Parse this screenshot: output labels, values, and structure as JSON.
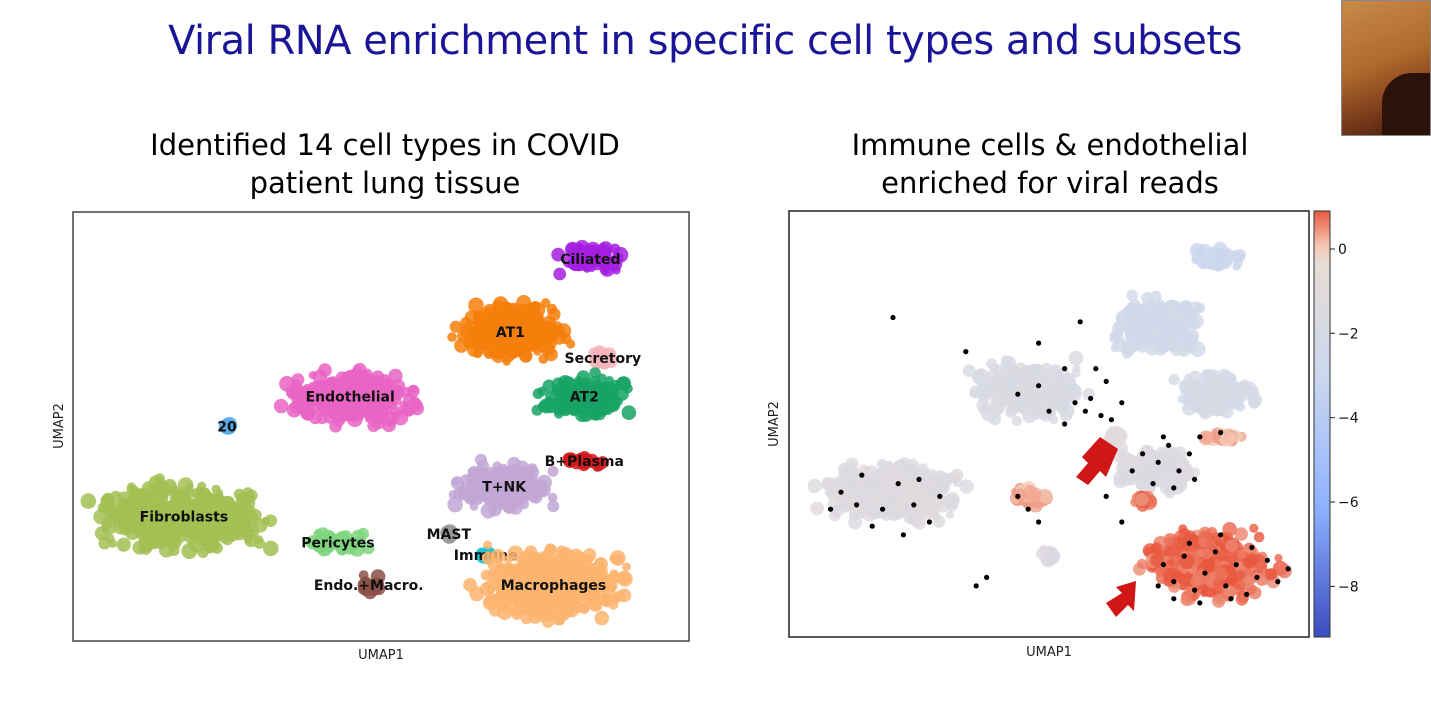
{
  "slide": {
    "title": "Viral RNA enrichment in specific cell types and subsets"
  },
  "chart_data": [
    {
      "type": "scatter",
      "title": "Identified 14 cell types in COVID patient lung tissue",
      "title_lines": [
        "Identified 14 cell types in COVID",
        "patient lung tissue"
      ],
      "xlabel": "UMAP1",
      "ylabel": "UMAP2",
      "xlim": [
        0,
        100
      ],
      "ylim": [
        0,
        100
      ],
      "grid": false,
      "clusters": [
        {
          "name": "Ciliated",
          "color": "#a51ee0",
          "x": 84,
          "y": 89
        },
        {
          "name": "AT1",
          "color": "#f47f0b",
          "x": 71,
          "y": 72
        },
        {
          "name": "Secretory",
          "color": "#f3b4b9",
          "x": 86,
          "y": 66
        },
        {
          "name": "AT2",
          "color": "#17a365",
          "x": 83,
          "y": 57
        },
        {
          "name": "Endothelial",
          "color": "#e964c4",
          "x": 45,
          "y": 57
        },
        {
          "name": "20",
          "color": "#5aa9e6",
          "x": 25,
          "y": 50
        },
        {
          "name": "B+Plasma",
          "color": "#d7191c",
          "x": 83,
          "y": 42
        },
        {
          "name": "T+NK",
          "color": "#c2a7d6",
          "x": 70,
          "y": 36
        },
        {
          "name": "Fibroblasts",
          "color": "#a3bf53",
          "x": 18,
          "y": 29
        },
        {
          "name": "Pericytes",
          "color": "#7fd67f",
          "x": 43,
          "y": 23
        },
        {
          "name": "MAST",
          "color": "#9a9a9a",
          "x": 61,
          "y": 25
        },
        {
          "name": "Immune",
          "color": "#1cc4d6",
          "x": 67,
          "y": 20
        },
        {
          "name": "Endo.+Macro.",
          "color": "#8b5147",
          "x": 48,
          "y": 13
        },
        {
          "name": "Macrophages",
          "color": "#fdb46e",
          "x": 78,
          "y": 13
        }
      ]
    },
    {
      "type": "scatter",
      "title": "Immune cells & endothelial enriched for viral reads",
      "title_lines": [
        "Immune cells & endothelial",
        "enriched for viral reads"
      ],
      "xlabel": "UMAP1",
      "ylabel": "UMAP2",
      "xlim": [
        0,
        100
      ],
      "ylim": [
        0,
        100
      ],
      "grid": false,
      "colorbar": {
        "ticks": [
          0,
          -2,
          -4,
          -6,
          -8
        ],
        "range": [
          -9.2,
          0.9
        ],
        "colormap": "coolwarm"
      },
      "clusters": [
        {
          "x": 82,
          "y": 89,
          "value": -2.8
        },
        {
          "x": 71,
          "y": 73,
          "value": -2.4
        },
        {
          "x": 82,
          "y": 57,
          "value": -2.1
        },
        {
          "x": 46,
          "y": 58,
          "value": -1.6
        },
        {
          "x": 63,
          "y": 47,
          "value": -1.0
        },
        {
          "x": 71,
          "y": 39,
          "value": -1.4
        },
        {
          "x": 83,
          "y": 47,
          "value": 0.2
        },
        {
          "x": 20,
          "y": 34,
          "value": -1.3
        },
        {
          "x": 46,
          "y": 33,
          "value": 0.3
        },
        {
          "x": 50,
          "y": 19,
          "value": -1.5
        },
        {
          "x": 68,
          "y": 32,
          "value": 0.6
        },
        {
          "x": 81,
          "y": 17,
          "value": 0.8
        }
      ],
      "highlighted_cells": [
        {
          "x": 57,
          "y": 53
        },
        {
          "x": 60,
          "y": 52
        },
        {
          "x": 55,
          "y": 55
        },
        {
          "x": 58,
          "y": 56
        },
        {
          "x": 62,
          "y": 51
        },
        {
          "x": 53,
          "y": 50
        },
        {
          "x": 50,
          "y": 53
        },
        {
          "x": 48,
          "y": 59
        },
        {
          "x": 44,
          "y": 57
        },
        {
          "x": 64,
          "y": 55
        },
        {
          "x": 61,
          "y": 60
        },
        {
          "x": 53,
          "y": 63
        },
        {
          "x": 68,
          "y": 43
        },
        {
          "x": 71,
          "y": 41
        },
        {
          "x": 73,
          "y": 45
        },
        {
          "x": 75,
          "y": 39
        },
        {
          "x": 70,
          "y": 36
        },
        {
          "x": 77,
          "y": 43
        },
        {
          "x": 79,
          "y": 47
        },
        {
          "x": 83,
          "y": 48
        },
        {
          "x": 66,
          "y": 39
        },
        {
          "x": 72,
          "y": 47
        },
        {
          "x": 74,
          "y": 35
        },
        {
          "x": 78,
          "y": 37
        },
        {
          "x": 10,
          "y": 34
        },
        {
          "x": 14,
          "y": 38
        },
        {
          "x": 18,
          "y": 30
        },
        {
          "x": 21,
          "y": 36
        },
        {
          "x": 24,
          "y": 31
        },
        {
          "x": 27,
          "y": 27
        },
        {
          "x": 16,
          "y": 26
        },
        {
          "x": 13,
          "y": 31
        },
        {
          "x": 22,
          "y": 24
        },
        {
          "x": 29,
          "y": 33
        },
        {
          "x": 8,
          "y": 30
        },
        {
          "x": 25,
          "y": 37
        },
        {
          "x": 44,
          "y": 33
        },
        {
          "x": 46,
          "y": 30
        },
        {
          "x": 48,
          "y": 27
        },
        {
          "x": 61,
          "y": 33
        },
        {
          "x": 64,
          "y": 27
        },
        {
          "x": 20,
          "y": 75
        },
        {
          "x": 34,
          "y": 67
        },
        {
          "x": 48,
          "y": 69
        },
        {
          "x": 56,
          "y": 74
        },
        {
          "x": 59,
          "y": 63
        },
        {
          "x": 36,
          "y": 12
        },
        {
          "x": 38,
          "y": 14
        },
        {
          "x": 72,
          "y": 17
        },
        {
          "x": 74,
          "y": 13
        },
        {
          "x": 76,
          "y": 19
        },
        {
          "x": 78,
          "y": 11
        },
        {
          "x": 80,
          "y": 15
        },
        {
          "x": 82,
          "y": 20
        },
        {
          "x": 84,
          "y": 12
        },
        {
          "x": 86,
          "y": 17
        },
        {
          "x": 88,
          "y": 10
        },
        {
          "x": 90,
          "y": 14
        },
        {
          "x": 92,
          "y": 18
        },
        {
          "x": 94,
          "y": 13
        },
        {
          "x": 96,
          "y": 16
        },
        {
          "x": 74,
          "y": 9
        },
        {
          "x": 79,
          "y": 8
        },
        {
          "x": 85,
          "y": 9
        },
        {
          "x": 77,
          "y": 22
        },
        {
          "x": 83,
          "y": 24
        },
        {
          "x": 89,
          "y": 21
        },
        {
          "x": 71,
          "y": 12
        }
      ]
    }
  ]
}
